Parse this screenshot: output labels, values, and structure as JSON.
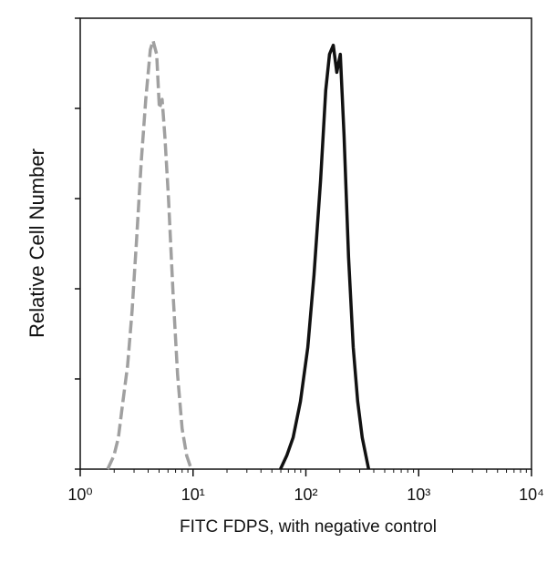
{
  "chart_data": {
    "type": "line",
    "xlabel": "FITC FDPS, with negative control",
    "ylabel": "Relative Cell Number",
    "xscale": "log",
    "xlim": [
      1,
      10000
    ],
    "ylim": [
      0,
      100
    ],
    "xticks": [
      {
        "value": 1,
        "label": "10⁰"
      },
      {
        "value": 10,
        "label": "10¹"
      },
      {
        "value": 100,
        "label": "10²"
      },
      {
        "value": 1000,
        "label": "10³"
      },
      {
        "value": 10000,
        "label": "10⁴"
      }
    ],
    "yticks": [
      0,
      20,
      40,
      60,
      80,
      100
    ],
    "series": [
      {
        "color": "#a0a0a0",
        "dashed": true,
        "x": [
          1.75,
          1.99,
          2.18,
          2.39,
          2.63,
          2.88,
          3.16,
          3.47,
          3.81,
          4.18,
          4.42,
          4.76,
          5.03,
          5.32,
          5.62,
          6.06,
          6.65,
          7.29,
          8.0,
          8.78,
          9.64
        ],
        "values": [
          0,
          3,
          7,
          15,
          23,
          35,
          51,
          68,
          82,
          93,
          95,
          92,
          80,
          82,
          74,
          60,
          39,
          21,
          9,
          3,
          0
        ]
      },
      {
        "color": "#111111",
        "dashed": false,
        "x": [
          59.5,
          67.7,
          77.1,
          89.5,
          104,
          118,
          135,
          150,
          162,
          175,
          188,
          202,
          218,
          239,
          263,
          288,
          316,
          360
        ],
        "values": [
          0,
          3,
          7,
          15,
          27,
          43,
          64,
          84,
          92,
          94,
          88,
          92,
          74,
          47,
          27,
          15,
          7,
          0
        ]
      }
    ]
  }
}
